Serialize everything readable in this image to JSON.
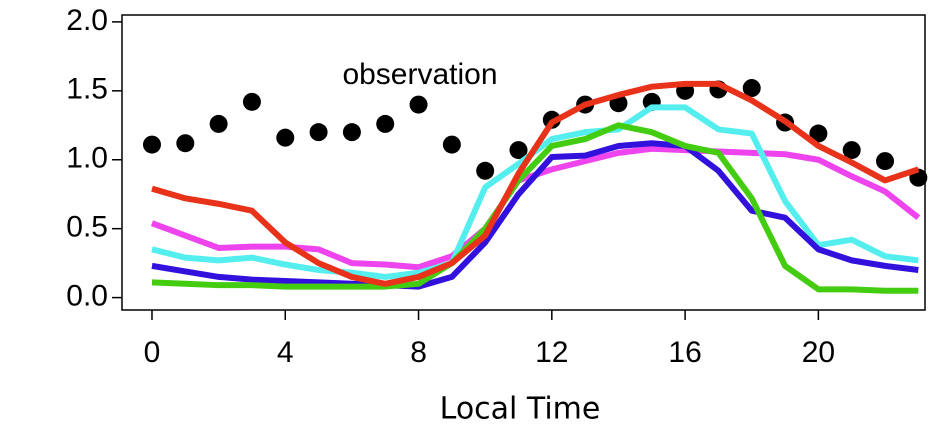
{
  "chart_data": {
    "type": "line",
    "annotation": "observation",
    "xlabel": "Local Time",
    "x": [
      0,
      1,
      2,
      3,
      4,
      5,
      6,
      7,
      8,
      9,
      10,
      11,
      12,
      13,
      14,
      15,
      16,
      17,
      18,
      19,
      20,
      21,
      22,
      23
    ],
    "xlim": [
      -0.9,
      23.2
    ],
    "xticks": [
      0,
      4,
      8,
      12,
      16,
      20
    ],
    "ylim": [
      -0.09,
      2.05
    ],
    "yticks": [
      {
        "value": 0,
        "label": "0.0"
      },
      {
        "value": 0.5,
        "label": "0.5"
      },
      {
        "value": 1,
        "label": "1.0"
      },
      {
        "value": 1.5,
        "label": "1.5"
      },
      {
        "value": 2,
        "label": "2.0"
      }
    ],
    "series": [
      {
        "style": "points",
        "color": "#000000",
        "values": [
          1.11,
          1.12,
          1.26,
          1.42,
          1.16,
          1.2,
          1.2,
          1.26,
          1.4,
          1.11,
          0.92,
          1.07,
          1.29,
          1.4,
          1.41,
          1.42,
          1.5,
          1.51,
          1.52,
          1.27,
          1.19,
          1.07,
          0.99,
          0.87
        ]
      },
      {
        "style": "line",
        "color": "#ee44ee",
        "values": [
          0.54,
          0.45,
          0.36,
          0.37,
          0.37,
          0.35,
          0.25,
          0.24,
          0.22,
          0.3,
          0.5,
          0.85,
          0.93,
          0.99,
          1.05,
          1.08,
          1.07,
          1.06,
          1.05,
          1.04,
          1.0,
          0.88,
          0.77,
          0.58
        ]
      },
      {
        "style": "line",
        "color": "#55eeee",
        "values": [
          0.35,
          0.29,
          0.27,
          0.29,
          0.24,
          0.2,
          0.18,
          0.15,
          0.18,
          0.25,
          0.8,
          0.97,
          1.15,
          1.2,
          1.22,
          1.38,
          1.38,
          1.22,
          1.19,
          0.7,
          0.38,
          0.42,
          0.3,
          0.27
        ]
      },
      {
        "style": "line",
        "color": "#3311dd",
        "values": [
          0.23,
          0.19,
          0.15,
          0.13,
          0.12,
          0.11,
          0.1,
          0.09,
          0.08,
          0.15,
          0.4,
          0.75,
          1.02,
          1.03,
          1.1,
          1.12,
          1.1,
          0.92,
          0.63,
          0.58,
          0.35,
          0.27,
          0.23,
          0.2
        ]
      },
      {
        "style": "line",
        "color": "#44cc11",
        "values": [
          0.11,
          0.1,
          0.09,
          0.09,
          0.08,
          0.08,
          0.08,
          0.08,
          0.1,
          0.25,
          0.5,
          0.85,
          1.1,
          1.15,
          1.25,
          1.2,
          1.1,
          1.05,
          0.72,
          0.23,
          0.06,
          0.06,
          0.05,
          0.05
        ]
      },
      {
        "style": "line",
        "color": "#e8331a",
        "values": [
          0.79,
          0.72,
          0.68,
          0.63,
          0.4,
          0.25,
          0.15,
          0.1,
          0.15,
          0.25,
          0.45,
          0.9,
          1.27,
          1.4,
          1.47,
          1.53,
          1.55,
          1.55,
          1.43,
          1.28,
          1.1,
          0.98,
          0.85,
          0.93
        ]
      }
    ]
  }
}
